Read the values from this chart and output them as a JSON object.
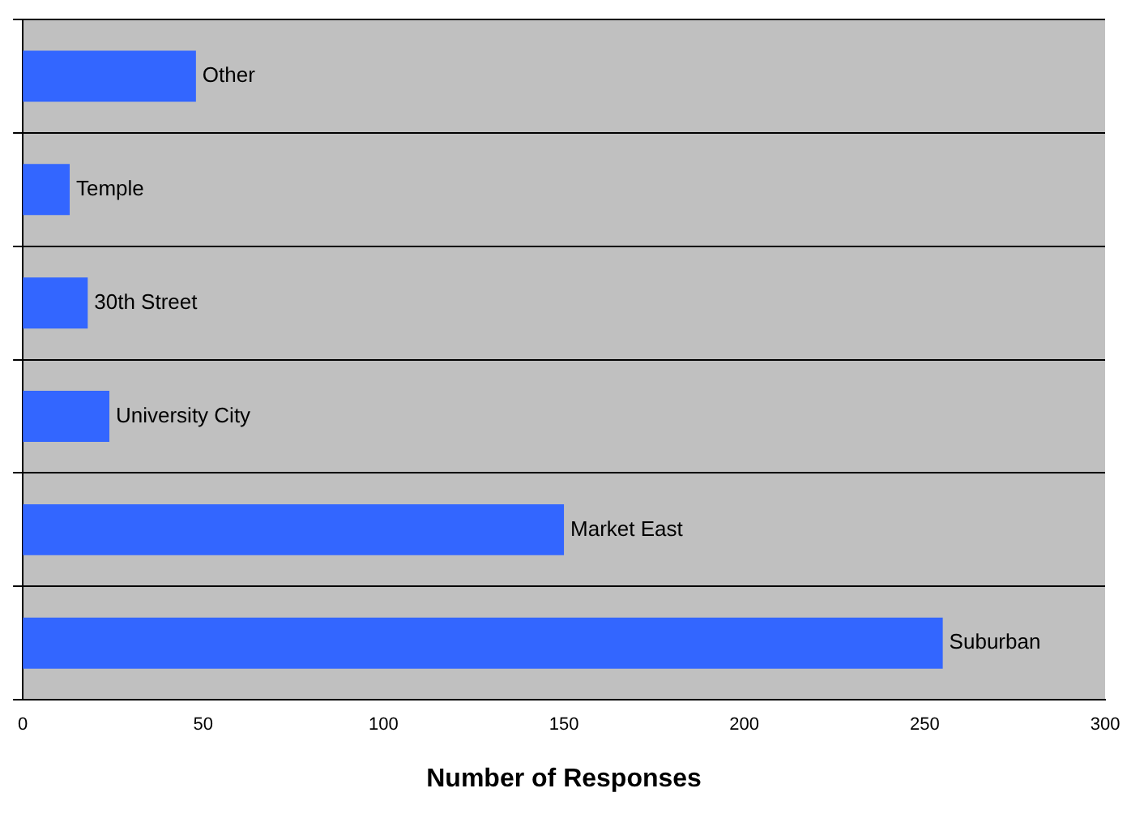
{
  "chart_data": {
    "type": "bar",
    "orientation": "horizontal",
    "xlabel": "Number of Responses",
    "categories": [
      "Other",
      "Temple",
      "30th Street",
      "University City",
      "Market East",
      "Suburban"
    ],
    "values": [
      48,
      13,
      18,
      24,
      150,
      255
    ],
    "color": "#3366ff",
    "xlim": [
      0,
      300
    ],
    "xticks": [
      0,
      50,
      100,
      150,
      200,
      250,
      300
    ],
    "grid": "y",
    "legend": false
  }
}
